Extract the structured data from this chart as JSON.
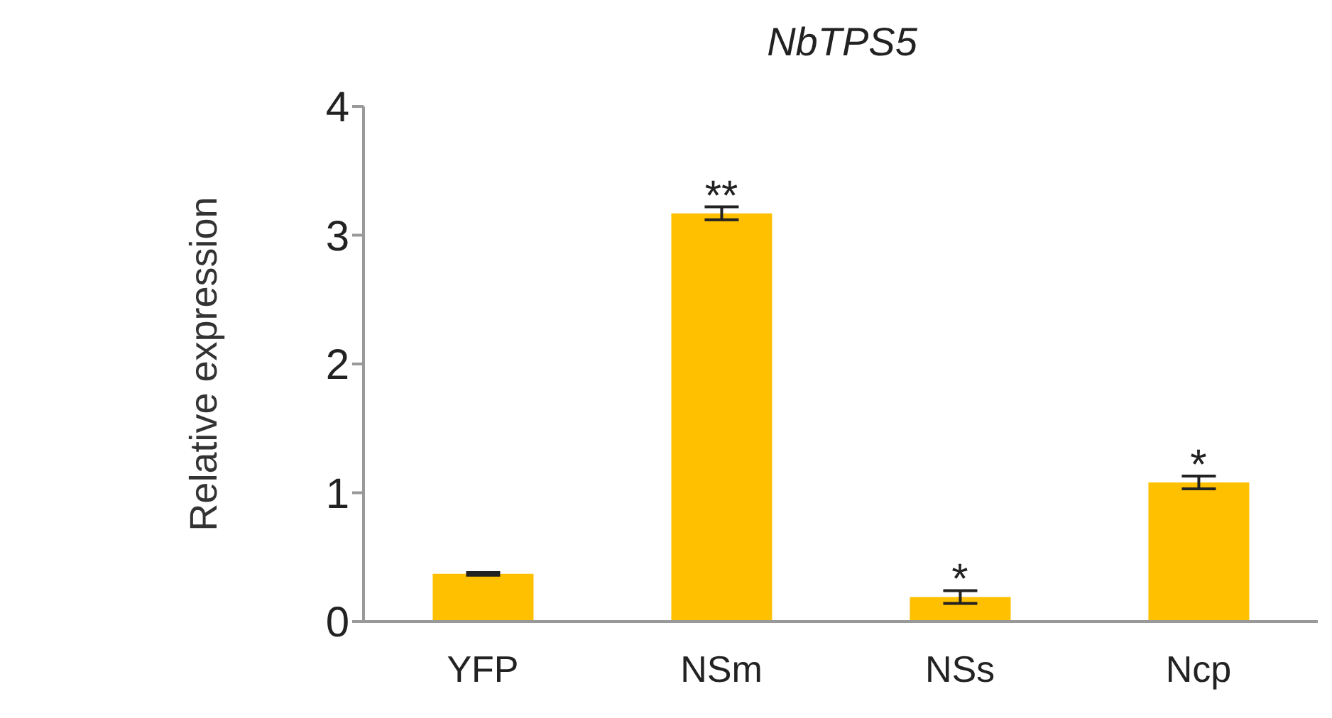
{
  "chart_data": {
    "type": "bar",
    "title": "NbTPS5",
    "ylabel": "Relative expression",
    "categories": [
      "YFP",
      "NSm",
      "NSs",
      "Ncp"
    ],
    "values": [
      0.37,
      3.17,
      0.19,
      1.08
    ],
    "errors": [
      0.01,
      0.05,
      0.05,
      0.05
    ],
    "color": "#ffc000",
    "ylim": [
      0,
      4
    ],
    "yticks": [
      0,
      1,
      2,
      3,
      4
    ],
    "grid": false,
    "legend": false,
    "annotations": [
      {
        "text": "**",
        "x": "NSm",
        "y": 3.17
      },
      {
        "text": "*",
        "x": "NSs",
        "y": 0.19
      },
      {
        "text": "*",
        "x": "Ncp",
        "y": 1.08
      }
    ]
  }
}
